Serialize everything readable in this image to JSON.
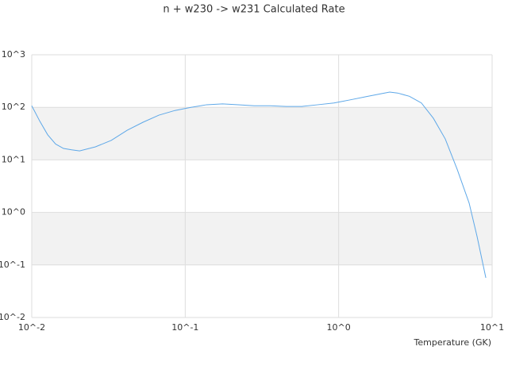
{
  "chart_data": {
    "type": "line",
    "title": "n + w230 -> w231 Calculated Rate",
    "x_label": "Temperature (GK)",
    "x_scale": "log",
    "y_scale": "log",
    "xlim": [
      0.01,
      10
    ],
    "ylim": [
      0.01,
      1000
    ],
    "xticks": [
      {
        "value": 0.01,
        "label": "10^-2"
      },
      {
        "value": 0.1,
        "label": "10^-1"
      },
      {
        "value": 1,
        "label": "10^0"
      },
      {
        "value": 10,
        "label": "10^1"
      }
    ],
    "yticks": [
      {
        "value": 0.01,
        "label": "10^-2"
      },
      {
        "value": 0.1,
        "label": "10^-1"
      },
      {
        "value": 1,
        "label": "10^0"
      },
      {
        "value": 10,
        "label": "10^1"
      },
      {
        "value": 100,
        "label": "10^2"
      },
      {
        "value": 1000,
        "label": "10^3"
      }
    ],
    "grid": true,
    "series": [
      {
        "color": "#5ea8e8",
        "x": [
          0.01,
          0.0113,
          0.0127,
          0.0143,
          0.0161,
          0.0182,
          0.0205,
          0.026,
          0.033,
          0.0419,
          0.0531,
          0.0674,
          0.0857,
          0.109,
          0.138,
          0.175,
          0.222,
          0.282,
          0.358,
          0.455,
          0.578,
          0.733,
          0.931,
          1.18,
          1.5,
          1.9,
          2.15,
          2.42,
          2.89,
          3.46,
          4.14,
          4.95,
          5.92,
          7.08,
          7.98,
          9.1
        ],
        "values": [
          107,
          54,
          30,
          20,
          16.5,
          15.5,
          14.8,
          17.7,
          23.5,
          36.6,
          52,
          71,
          87,
          100,
          112,
          116,
          112,
          107,
          107,
          104,
          104,
          112,
          121,
          138,
          159,
          182,
          195,
          187,
          162,
          121,
          62,
          25,
          6.6,
          1.51,
          0.347,
          0.057
        ]
      }
    ]
  }
}
